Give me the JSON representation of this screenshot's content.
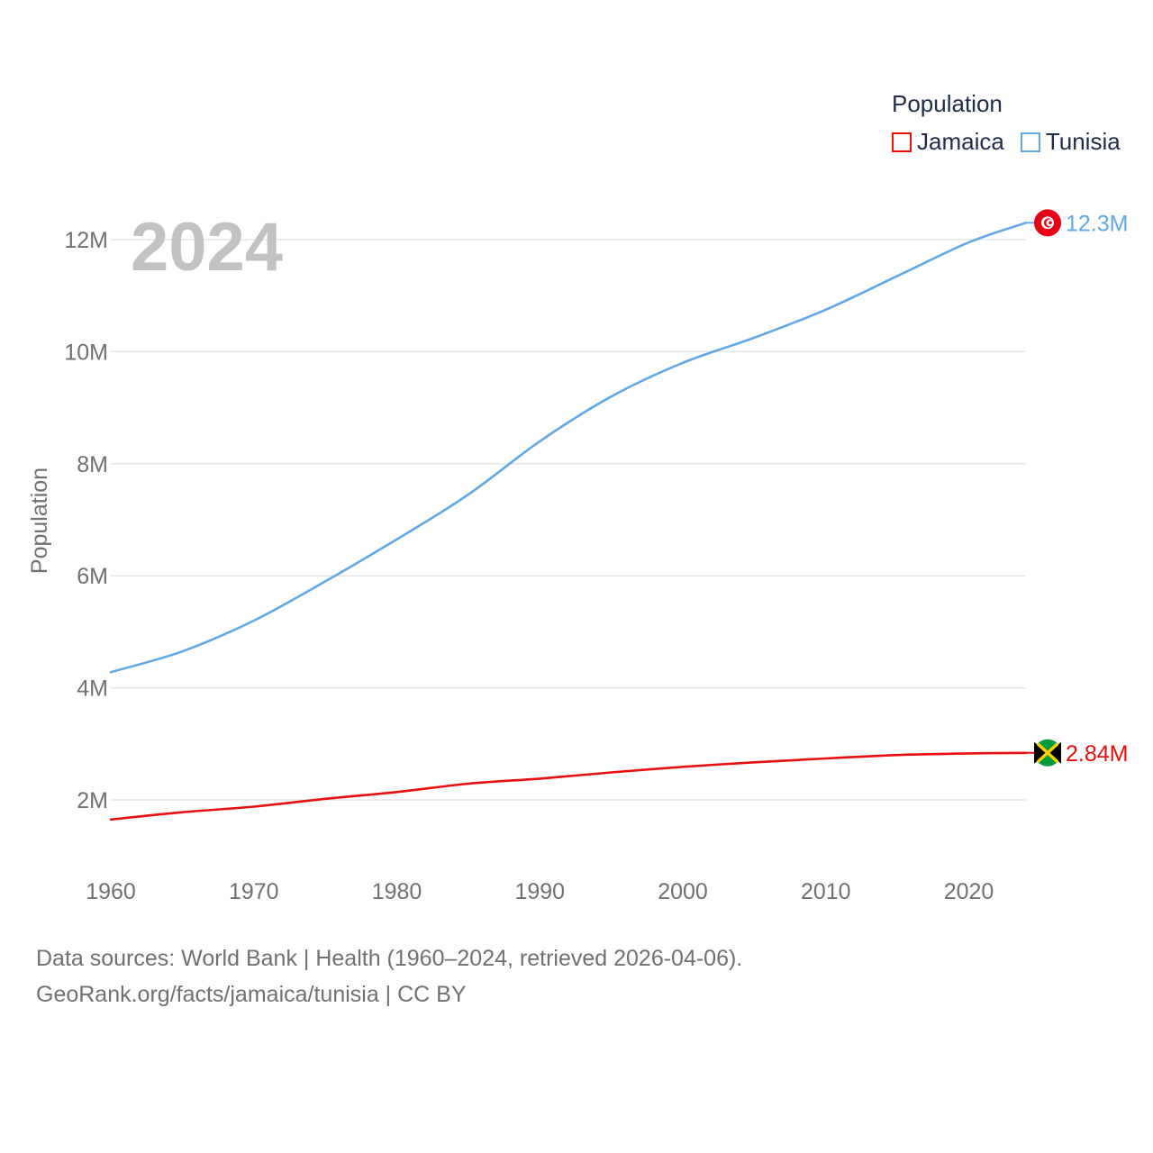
{
  "legend": {
    "title": "Population",
    "items": [
      {
        "label": "Jamaica",
        "color": "#e8100f"
      },
      {
        "label": "Tunisia",
        "color": "#62a8e5"
      }
    ]
  },
  "source": {
    "line1": "Data sources: World Bank | Health (1960–2024, retrieved 2026-04-06).",
    "line2": "GeoRank.org/facts/jamaica/tunisia | CC BY"
  },
  "chart_data": {
    "type": "line",
    "title": "",
    "xlabel": "",
    "ylabel": "Population",
    "year_watermark": "2024",
    "xlim": [
      1960,
      2024
    ],
    "ylim": [
      1200000,
      12800000
    ],
    "x_ticks": [
      1960,
      1970,
      1980,
      1990,
      2000,
      2010,
      2020
    ],
    "y_ticks": [
      {
        "value": 2000000,
        "label": "2M"
      },
      {
        "value": 4000000,
        "label": "4M"
      },
      {
        "value": 6000000,
        "label": "6M"
      },
      {
        "value": 8000000,
        "label": "8M"
      },
      {
        "value": 10000000,
        "label": "10M"
      },
      {
        "value": 12000000,
        "label": "12M"
      }
    ],
    "grid": true,
    "series": [
      {
        "name": "Tunisia",
        "color": "#62a8e5",
        "end_label": "12.3M",
        "x": [
          1960,
          1965,
          1970,
          1975,
          1980,
          1985,
          1990,
          1995,
          2000,
          2005,
          2010,
          2015,
          2020,
          2024
        ],
        "values": [
          4280000,
          4650000,
          5200000,
          5900000,
          6650000,
          7450000,
          8400000,
          9200000,
          9800000,
          10250000,
          10750000,
          11350000,
          11950000,
          12300000
        ]
      },
      {
        "name": "Jamaica",
        "color": "#e8100f",
        "end_label": "2.84M",
        "x": [
          1960,
          1965,
          1970,
          1975,
          1980,
          1985,
          1990,
          1995,
          2000,
          2005,
          2010,
          2015,
          2020,
          2024
        ],
        "values": [
          1650000,
          1780000,
          1880000,
          2020000,
          2140000,
          2290000,
          2380000,
          2490000,
          2590000,
          2670000,
          2740000,
          2800000,
          2830000,
          2840000
        ]
      }
    ]
  }
}
